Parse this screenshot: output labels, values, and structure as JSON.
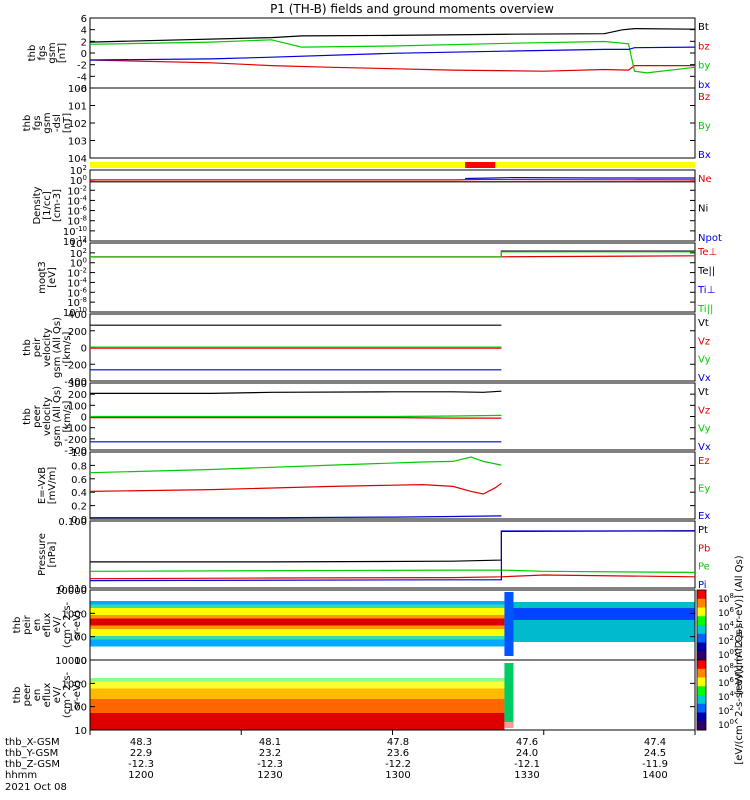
{
  "title": "P1 (TH-B) fields and ground moments overview",
  "colors": {
    "black": "#000000",
    "red": "#dd0000",
    "green": "#00cc00",
    "blue": "#0000dd",
    "yellow": "#ffff00",
    "barred": "#ff0000"
  },
  "chart_data": [
    {
      "type": "line",
      "ylabel": [
        "thb",
        "fgs",
        "gsm",
        "[nT]"
      ],
      "yticks": [
        "6",
        "4",
        "2",
        "0",
        "-2",
        "-4",
        "-6"
      ],
      "ylim": [
        -6,
        6.5
      ],
      "legend": [
        {
          "label": "Bt",
          "color": "black"
        },
        {
          "label": "bz",
          "color": "red"
        },
        {
          "label": "by",
          "color": "green"
        },
        {
          "label": "bx",
          "color": "blue"
        }
      ],
      "series": [
        {
          "name": "Bt",
          "color": "black",
          "x": [
            0,
            0.3,
            0.35,
            0.5,
            0.7,
            0.85,
            0.88,
            0.9,
            1
          ],
          "y": [
            2.2,
            3.0,
            3.3,
            3.4,
            3.6,
            3.7,
            4.4,
            4.6,
            4.5
          ]
        },
        {
          "name": "bz",
          "color": "red",
          "x": [
            0,
            0.2,
            0.3,
            0.4,
            0.6,
            0.75,
            0.85,
            0.89,
            0.9,
            1
          ],
          "y": [
            -1.0,
            -1.5,
            -2.0,
            -2.3,
            -2.8,
            -3.0,
            -2.7,
            -2.8,
            -2.0,
            -2.0
          ]
        },
        {
          "name": "by",
          "color": "green",
          "x": [
            0,
            0.2,
            0.3,
            0.35,
            0.5,
            0.7,
            0.85,
            0.89,
            0.9,
            0.92,
            1
          ],
          "y": [
            1.8,
            2.2,
            2.6,
            1.3,
            1.5,
            2.0,
            2.3,
            1.9,
            -3.0,
            -3.3,
            -2.3
          ]
        },
        {
          "name": "bx",
          "color": "blue",
          "x": [
            0,
            0.2,
            0.3,
            0.5,
            0.7,
            0.85,
            0.89,
            0.9,
            1
          ],
          "y": [
            -1.0,
            -0.8,
            -0.5,
            0.2,
            0.6,
            0.9,
            0.9,
            1.2,
            1.3
          ]
        }
      ]
    },
    {
      "type": "line",
      "ylabel": [
        "thb",
        "fgs",
        "gsm",
        "-dsl",
        "[nT]"
      ],
      "yticks": [
        "100",
        "101",
        "102",
        "103",
        "104"
      ],
      "ylim": [
        100,
        105
      ],
      "legend": [
        {
          "label": "Bz",
          "color": "red"
        },
        {
          "label": "By",
          "color": "green"
        },
        {
          "label": "Bx",
          "color": "blue"
        }
      ],
      "series": []
    },
    {
      "type": "bar",
      "segments": [
        {
          "x0": 0,
          "x1": 0.62,
          "color": "yellow"
        },
        {
          "x0": 0.62,
          "x1": 0.67,
          "color": "barred"
        },
        {
          "x0": 0.67,
          "x1": 1,
          "color": "yellow"
        }
      ]
    },
    {
      "type": "line",
      "ylabel": [
        "Density",
        "[1/cc]",
        "[cm-3]"
      ],
      "yticks": [
        "10^2",
        "10^0",
        "10^-2",
        "10^-4",
        "10^-6",
        "10^-8",
        "10^-10",
        "10^-12"
      ],
      "ylim": [
        -13,
        2
      ],
      "legend": [
        {
          "label": "Ne",
          "color": "red"
        },
        {
          "label": "Ni",
          "color": "black"
        },
        {
          "label": "Npot",
          "color": "blue"
        }
      ],
      "series": [
        {
          "name": "Ne",
          "color": "red",
          "x": [
            0,
            0.6,
            0.65,
            1
          ],
          "y": [
            -0.1,
            -0.1,
            0,
            -0.1
          ]
        },
        {
          "name": "Ni",
          "color": "black",
          "x": [
            0,
            1
          ],
          "y": [
            -0.5,
            -0.5
          ]
        },
        {
          "name": "Npot",
          "color": "blue",
          "x": [
            0.62,
            0.7,
            0.85,
            1
          ],
          "y": [
            0.2,
            0.4,
            0.3,
            0.3
          ]
        }
      ]
    },
    {
      "type": "line",
      "ylabel": [
        "moqt3",
        "[eV]"
      ],
      "yticks": [
        "10^4",
        "10^2",
        "10^0",
        "10^-2",
        "10^-4",
        "10^-6",
        "10^-8",
        "10^-10"
      ],
      "ylim": [
        -10.5,
        4
      ],
      "legend": [
        {
          "label": "Te⊥",
          "color": "red"
        },
        {
          "label": "Te||",
          "color": "black"
        },
        {
          "label": "Ti⊥",
          "color": "blue"
        },
        {
          "label": "Ti||",
          "color": "green"
        }
      ],
      "series": [
        {
          "name": "Te⊥",
          "color": "red",
          "x": [
            0,
            0.68,
            1
          ],
          "y": [
            1.1,
            1.1,
            1.3
          ]
        },
        {
          "name": "Te||",
          "color": "black",
          "x": [
            0.68,
            0.68,
            1
          ],
          "y": [
            1.2,
            2.3,
            2.3
          ]
        },
        {
          "name": "Ti||",
          "color": "green",
          "x": [
            0,
            0.68,
            0.68,
            1
          ],
          "y": [
            1.05,
            1.05,
            2.15,
            2.15
          ]
        }
      ]
    },
    {
      "type": "line",
      "ylabel": [
        "thb",
        "peir",
        "velocity",
        "gsm (All Qs)",
        "[km/s]"
      ],
      "yticks": [
        "400",
        "200",
        "0",
        "-200",
        "-400"
      ],
      "ylim": [
        -450,
        450
      ],
      "legend": [
        {
          "label": "Vt",
          "color": "black"
        },
        {
          "label": "Vz",
          "color": "red"
        },
        {
          "label": "Vy",
          "color": "green"
        },
        {
          "label": "Vx",
          "color": "blue"
        }
      ],
      "series": [
        {
          "name": "Vt",
          "color": "black",
          "x": [
            0,
            0.68
          ],
          "y": [
            300,
            300
          ]
        },
        {
          "name": "Vz",
          "color": "red",
          "x": [
            0,
            0.68
          ],
          "y": [
            -10,
            -10
          ]
        },
        {
          "name": "Vy",
          "color": "green",
          "x": [
            0,
            0.68
          ],
          "y": [
            5,
            5
          ]
        },
        {
          "name": "Vx",
          "color": "blue",
          "x": [
            0,
            0.68
          ],
          "y": [
            -300,
            -300
          ]
        }
      ]
    },
    {
      "type": "line",
      "ylabel": [
        "thb",
        "peer",
        "velocity",
        "gsm (All Qs)",
        "[km/s]"
      ],
      "yticks": [
        "300",
        "200",
        "100",
        "0",
        "-100",
        "-200",
        "-300"
      ],
      "ylim": [
        -300,
        310
      ],
      "legend": [
        {
          "label": "Vt",
          "color": "black"
        },
        {
          "label": "Vz",
          "color": "red"
        },
        {
          "label": "Vy",
          "color": "green"
        },
        {
          "label": "Vx",
          "color": "blue"
        }
      ],
      "series": [
        {
          "name": "Vt",
          "color": "black",
          "x": [
            0,
            0.2,
            0.3,
            0.5,
            0.6,
            0.65,
            0.68
          ],
          "y": [
            215,
            215,
            225,
            230,
            230,
            225,
            235
          ]
        },
        {
          "name": "Vz",
          "color": "red",
          "x": [
            0,
            0.5,
            0.6,
            0.68
          ],
          "y": [
            -5,
            -5,
            -10,
            -10
          ]
        },
        {
          "name": "Vy",
          "color": "green",
          "x": [
            0,
            0.5,
            0.6,
            0.68
          ],
          "y": [
            5,
            5,
            10,
            15
          ]
        },
        {
          "name": "Vx",
          "color": "blue",
          "x": [
            0,
            0.4,
            0.6,
            0.68
          ],
          "y": [
            -225,
            -225,
            -225,
            -225
          ]
        }
      ]
    },
    {
      "type": "line",
      "ylabel": [
        "E=-VxB",
        "[mV/m]"
      ],
      "yticks": [
        "1.0",
        "0.8",
        "0.6",
        "0.4",
        "0.2",
        "0.0"
      ],
      "ylim": [
        -0.02,
        1.05
      ],
      "legend": [
        {
          "label": "Ez",
          "color": "red"
        },
        {
          "label": "Ey",
          "color": "green"
        },
        {
          "label": "Ex",
          "color": "blue"
        }
      ],
      "series": [
        {
          "name": "Ez",
          "color": "red",
          "x": [
            0,
            0.2,
            0.4,
            0.55,
            0.6,
            0.63,
            0.65,
            0.67,
            0.68
          ],
          "y": [
            0.42,
            0.45,
            0.5,
            0.53,
            0.5,
            0.42,
            0.38,
            0.48,
            0.55
          ]
        },
        {
          "name": "Ey",
          "color": "green",
          "x": [
            0,
            0.2,
            0.4,
            0.55,
            0.6,
            0.63,
            0.65,
            0.67,
            0.68
          ],
          "y": [
            0.72,
            0.77,
            0.84,
            0.89,
            0.9,
            0.97,
            0.9,
            0.86,
            0.84
          ]
        },
        {
          "name": "Ex",
          "color": "blue",
          "x": [
            0,
            0.3,
            0.5,
            0.6,
            0.68
          ],
          "y": [
            0.0,
            0.0,
            0.01,
            0.02,
            0.03
          ]
        }
      ]
    },
    {
      "type": "line",
      "ylabel": [
        "Pressure",
        "[nPa]"
      ],
      "yticks": [
        "0.100",
        "0.010"
      ],
      "ylim": [
        -2.4,
        -0.6
      ],
      "legend": [
        {
          "label": "Pt",
          "color": "black"
        },
        {
          "label": "Pb",
          "color": "red"
        },
        {
          "label": "Pe",
          "color": "green"
        },
        {
          "label": "Pi",
          "color": "blue"
        }
      ],
      "series": [
        {
          "name": "Pt",
          "color": "black",
          "x": [
            0,
            0.3,
            0.6,
            0.68,
            0.68,
            1
          ],
          "y": [
            -1.7,
            -1.7,
            -1.68,
            -1.65,
            -0.88,
            -0.86
          ]
        },
        {
          "name": "Pb",
          "color": "red",
          "x": [
            0,
            0.3,
            0.6,
            0.68,
            0.75,
            1
          ],
          "y": [
            -2.15,
            -2.13,
            -2.12,
            -2.1,
            -2.05,
            -2.1
          ]
        },
        {
          "name": "Pe",
          "color": "green",
          "x": [
            0,
            0.6,
            0.68,
            0.75,
            1
          ],
          "y": [
            -1.95,
            -1.92,
            -1.92,
            -1.95,
            -1.98
          ]
        },
        {
          "name": "Pi",
          "color": "blue",
          "x": [
            0,
            0.6,
            0.68,
            0.68,
            1
          ],
          "y": [
            -2.2,
            -2.18,
            -2.18,
            -0.87,
            -0.87
          ]
        }
      ]
    },
    {
      "type": "heatmap",
      "ylabel": [
        "thb",
        "peir",
        "en",
        "eflux",
        "eV/",
        "(cm^2-s-",
        "sr-eV)"
      ],
      "yticks": [
        "10000",
        "1000",
        "100",
        "10"
      ],
      "ylim": [
        0.7,
        4.4
      ],
      "zlabel": "[eV/(cm^2-s-sr-eV)] (All Qs)",
      "zticks": [
        "10^8",
        "10^6",
        "10^4",
        "10^2",
        "10^0"
      ]
    },
    {
      "type": "heatmap",
      "ylabel": [
        "thb",
        "peer",
        "en",
        "eflux",
        "eV/",
        "(cm^2-s-",
        "sr-eV)"
      ],
      "yticks": [
        "10000",
        "1000",
        "100",
        "10"
      ],
      "ylim": [
        0.7,
        4.4
      ],
      "zlabel": "[eV/(cm^2-s-sr-eV)] (All Qs)",
      "zticks": [
        "10^8",
        "10^6",
        "10^4",
        "10^2",
        "10^0"
      ]
    }
  ],
  "xaxis": {
    "rows": [
      {
        "label": "thb_X-GSM",
        "values": [
          "48.3",
          "48.1",
          "47.8",
          "47.6",
          "47.4"
        ]
      },
      {
        "label": "thb_Y-GSM",
        "values": [
          "22.9",
          "23.2",
          "23.6",
          "24.0",
          "24.5"
        ]
      },
      {
        "label": "thb_Z-GSM",
        "values": [
          "-12.3",
          "-12.3",
          "-12.2",
          "-12.1",
          "-11.9"
        ]
      },
      {
        "label": "hhmm",
        "values": [
          "1200",
          "1230",
          "1300",
          "1330",
          "1400"
        ]
      }
    ],
    "date": "2021 Oct 08"
  }
}
